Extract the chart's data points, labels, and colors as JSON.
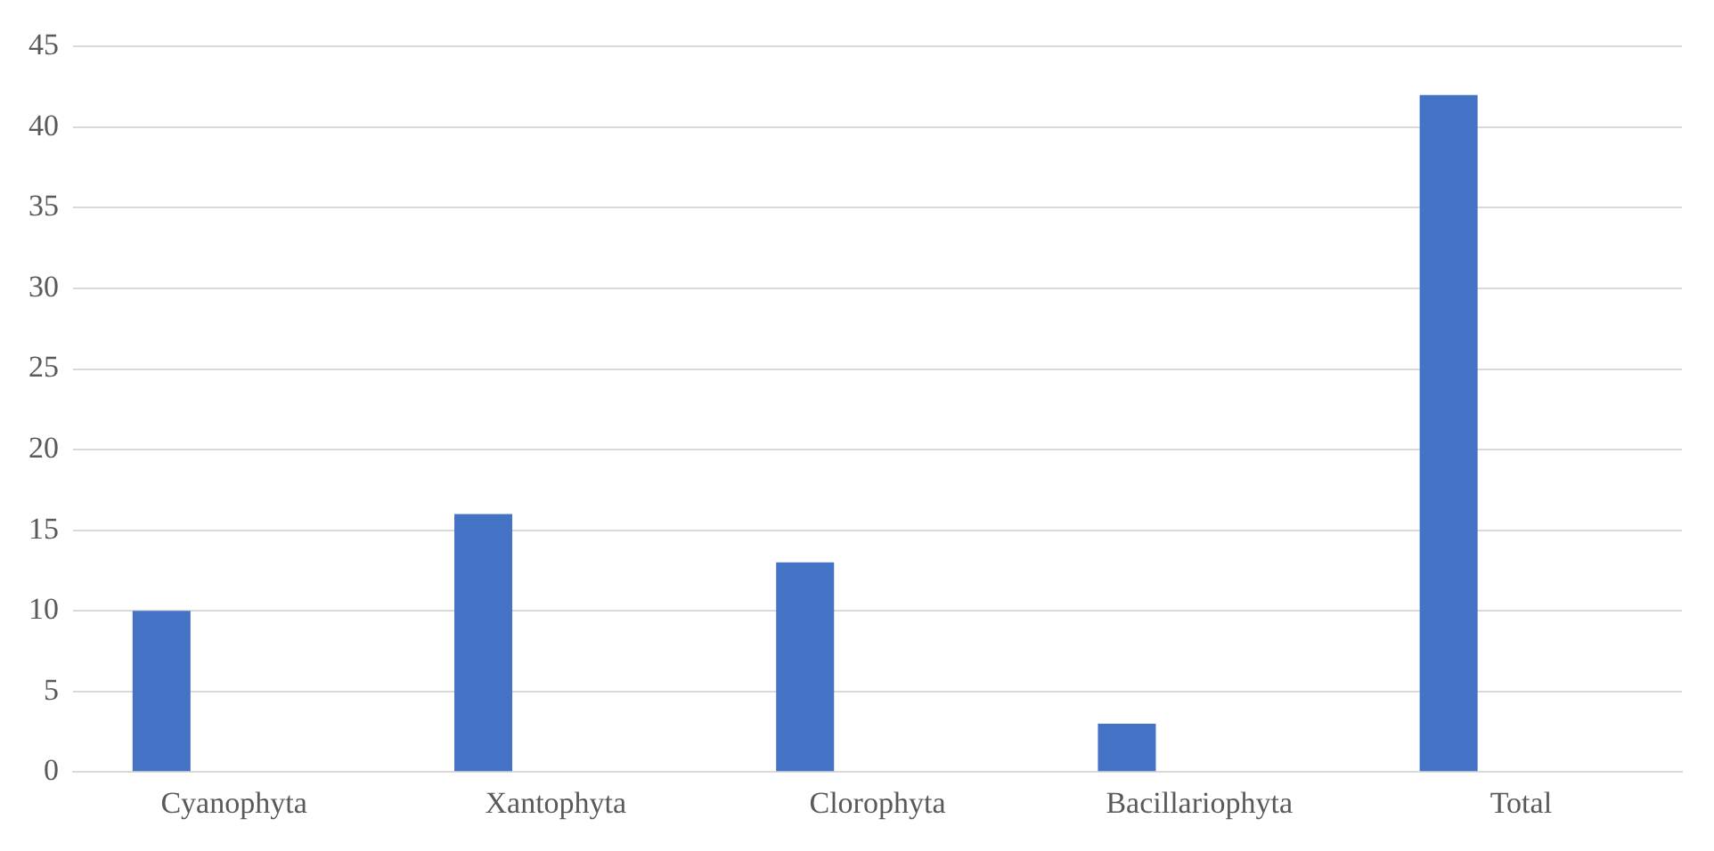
{
  "chart_data": {
    "type": "bar",
    "categories": [
      "Cyanophyta",
      "Xantophyta",
      "Clorophyta",
      "Bacillariophyta",
      "Total"
    ],
    "series": [
      {
        "color": "#4472c4",
        "values": [
          10,
          16,
          13,
          3,
          42
        ]
      },
      {
        "color": "#4472c4",
        "values": [
          null,
          null,
          null,
          null,
          null
        ]
      }
    ],
    "ylim": [
      0,
      45
    ],
    "yticks": [
      0,
      5,
      10,
      15,
      20,
      25,
      30,
      35,
      40,
      45
    ],
    "grid": "y",
    "legend": false
  }
}
